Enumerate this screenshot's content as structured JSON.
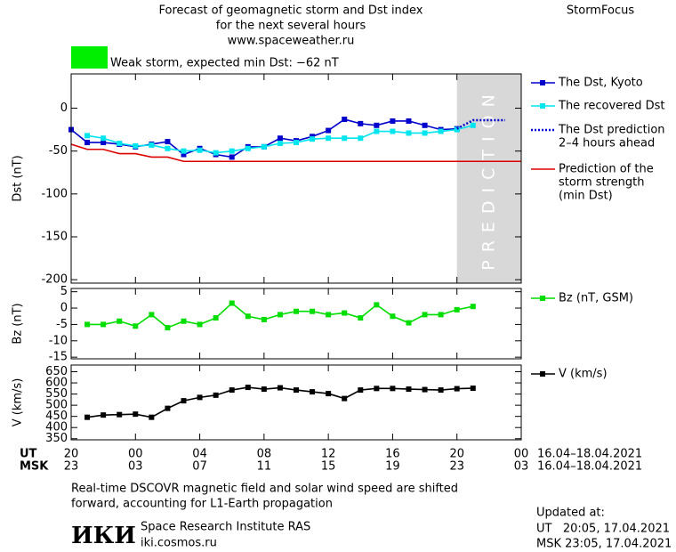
{
  "header": {
    "title_lines": [
      "Forecast of geomagnetic storm and Dst index",
      "for the next several hours"
    ],
    "site": "www.spaceweather.ru",
    "brand": "StormFocus",
    "storm_label": "Weak storm, expected min Dst: −62 nT",
    "storm_color": "#00ee00"
  },
  "chart_data": [
    {
      "type": "line",
      "ylabel": "Dst (nT)",
      "ylim": [
        -204,
        40
      ],
      "yticks": [
        0,
        -50,
        -100,
        -150,
        -200
      ],
      "prediction": {
        "from": 24,
        "label": "PREDICTION",
        "color": "#d8d8d8"
      },
      "series": [
        {
          "name": [
            "The Dst, Kyoto"
          ],
          "color": "#0000cc",
          "marker": "square",
          "style": "solid",
          "x": [
            0,
            1,
            2,
            3,
            4,
            5,
            6,
            7,
            8,
            9,
            10,
            11,
            12,
            13,
            14,
            15,
            16,
            17,
            18,
            19,
            20,
            21,
            22,
            23,
            24
          ],
          "values": [
            -25,
            -40,
            -40,
            -42,
            -45,
            -42,
            -39,
            -54,
            -47,
            -54,
            -57,
            -45,
            -45,
            -35,
            -38,
            -33,
            -26,
            -13,
            -18,
            -20,
            -15,
            -15,
            -20,
            -25,
            -24
          ]
        },
        {
          "name": [
            "The recovered Dst"
          ],
          "color": "#00e5ee",
          "marker": "square",
          "style": "solid",
          "x": [
            1,
            2,
            3,
            4,
            5,
            6,
            7,
            8,
            9,
            10,
            11,
            12,
            13,
            14,
            15,
            16,
            17,
            18,
            19,
            20,
            21,
            22,
            23,
            24,
            25
          ],
          "values": [
            -32,
            -35,
            -41,
            -44,
            -43,
            -47,
            -50,
            -49,
            -52,
            -50,
            -47,
            -45,
            -41,
            -40,
            -36,
            -35,
            -35,
            -35,
            -27,
            -27,
            -29,
            -29,
            -27,
            -25,
            -20
          ]
        },
        {
          "name": [
            "The Dst prediction",
            "2–4 hours ahead"
          ],
          "color": "#0000cc",
          "marker": "none",
          "style": "dotted",
          "x": [
            24,
            25,
            27
          ],
          "values": [
            -24,
            -14,
            -14
          ]
        },
        {
          "name": [
            "Prediction of the",
            "storm strength",
            "(min Dst)"
          ],
          "color": "#dd0000",
          "marker": "none",
          "style": "solid",
          "x": [
            0,
            1,
            2,
            3,
            4,
            5,
            6,
            7,
            28
          ],
          "values": [
            -42,
            -48,
            -48,
            -53,
            -53,
            -57,
            -57,
            -62,
            -62
          ]
        }
      ]
    },
    {
      "type": "line",
      "ylabel": "Bz (nT)",
      "ylim": [
        -15.5,
        6
      ],
      "yticks": [
        5,
        0,
        -5,
        -10,
        -15
      ],
      "series": [
        {
          "name": [
            "Bz (nT, GSM)"
          ],
          "color": "#00dd00",
          "marker": "square",
          "style": "solid",
          "x": [
            1,
            2,
            3,
            4,
            5,
            6,
            7,
            8,
            9,
            10,
            11,
            12,
            13,
            14,
            15,
            16,
            17,
            18,
            19,
            20,
            21,
            22,
            23,
            24,
            25
          ],
          "values": [
            -5,
            -5,
            -4,
            -5.5,
            -2,
            -6,
            -4,
            -5,
            -3,
            1.5,
            -2.5,
            -3.5,
            -2,
            -1,
            -1,
            -2,
            -1.5,
            -3,
            1,
            -2.5,
            -4.5,
            -2,
            -2,
            -0.5,
            0.5
          ]
        }
      ]
    },
    {
      "type": "line",
      "ylabel": "V (km/s)",
      "ylim": [
        345,
        680
      ],
      "yticks": [
        650,
        600,
        550,
        500,
        450,
        400,
        350
      ],
      "xlim": [
        0,
        28
      ],
      "xticks": [
        {
          "value": 0,
          "label": "20"
        },
        {
          "value": 4,
          "label": "00"
        },
        {
          "value": 8,
          "label": "04"
        },
        {
          "value": 12,
          "label": "08"
        },
        {
          "value": 16,
          "label": "12"
        },
        {
          "value": 20,
          "label": "16"
        },
        {
          "value": 24,
          "label": "20"
        },
        {
          "value": 28,
          "label": "00"
        }
      ],
      "xticks_msk": [
        "23",
        "03",
        "07",
        "11",
        "15",
        "19",
        "23",
        "03"
      ],
      "ut_label": "UT",
      "msk_label": "MSK",
      "date_range": "16.04–18.04.2021",
      "series": [
        {
          "name": [
            "V (km/s)"
          ],
          "color": "#000000",
          "marker": "square",
          "style": "solid",
          "x": [
            1,
            2,
            3,
            4,
            5,
            6,
            7,
            8,
            9,
            10,
            11,
            12,
            13,
            14,
            15,
            16,
            17,
            18,
            19,
            20,
            21,
            22,
            23,
            24,
            25
          ],
          "values": [
            446,
            456,
            458,
            460,
            446,
            486,
            520,
            535,
            545,
            568,
            580,
            572,
            578,
            568,
            560,
            552,
            530,
            568,
            575,
            575,
            572,
            570,
            568,
            574,
            576
          ]
        }
      ]
    }
  ],
  "footer": {
    "note_lines": [
      "Real-time DSCOVR magnetic field and solar wind speed are shifted",
      "forward, accounting for L1-Earth propagation"
    ],
    "logo": "ИКИ",
    "institute": "Space Research Institute RAS",
    "url": "iki.cosmos.ru",
    "updated_label": "Updated at:",
    "updated_ut": "UT   20:05, 17.04.2021",
    "updated_msk": "MSK 23:05, 17.04.2021"
  }
}
